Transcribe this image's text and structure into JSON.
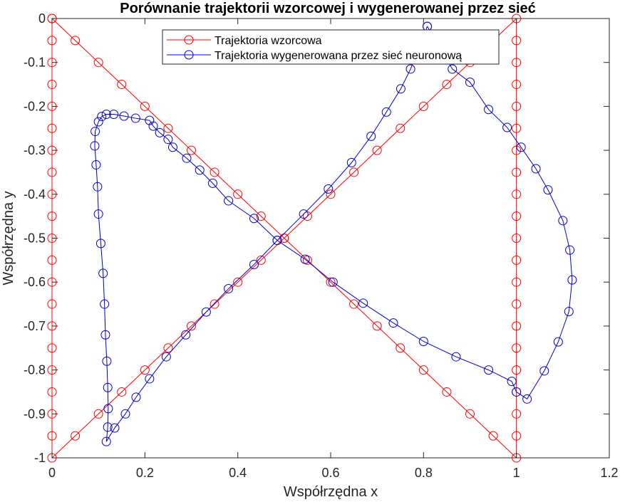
{
  "chart_data": {
    "type": "line",
    "title": "Porównanie trajektorii wzorcowej i wygenerowanej przez sieć",
    "xlabel": "Współrzędna x",
    "ylabel": "Współrzędna y",
    "xlim": [
      0,
      1.2
    ],
    "ylim": [
      -1,
      0
    ],
    "xticks": [
      "0",
      "0.2",
      "0.4",
      "0.6",
      "0.8",
      "1",
      "1.2"
    ],
    "yticks": [
      "-1",
      "-0.9",
      "-0.8",
      "-0.7",
      "-0.6",
      "-0.5",
      "-0.4",
      "-0.3",
      "-0.2",
      "-0.1",
      "0"
    ],
    "grid": false,
    "legend_position": "top-center",
    "series": [
      {
        "name": "Trajektoria wzorcowa",
        "color": "#ff0000",
        "marker": "circle",
        "points": [
          [
            0,
            0
          ],
          [
            0,
            -0.05
          ],
          [
            0,
            -0.1
          ],
          [
            0,
            -0.15
          ],
          [
            0,
            -0.2
          ],
          [
            0,
            -0.25
          ],
          [
            0,
            -0.3
          ],
          [
            0,
            -0.35
          ],
          [
            0,
            -0.4
          ],
          [
            0,
            -0.45
          ],
          [
            0,
            -0.5
          ],
          [
            0,
            -0.55
          ],
          [
            0,
            -0.6
          ],
          [
            0,
            -0.65
          ],
          [
            0,
            -0.7
          ],
          [
            0,
            -0.75
          ],
          [
            0,
            -0.8
          ],
          [
            0,
            -0.85
          ],
          [
            0,
            -0.9
          ],
          [
            0,
            -0.95
          ],
          [
            0,
            -1
          ],
          [
            0.05,
            -0.95
          ],
          [
            0.1,
            -0.9
          ],
          [
            0.15,
            -0.85
          ],
          [
            0.2,
            -0.8
          ],
          [
            0.25,
            -0.75
          ],
          [
            0.3,
            -0.7
          ],
          [
            0.35,
            -0.65
          ],
          [
            0.4,
            -0.6
          ],
          [
            0.45,
            -0.55
          ],
          [
            0.5,
            -0.5
          ],
          [
            0.55,
            -0.45
          ],
          [
            0.6,
            -0.4
          ],
          [
            0.65,
            -0.35
          ],
          [
            0.7,
            -0.3
          ],
          [
            0.75,
            -0.25
          ],
          [
            0.8,
            -0.2
          ],
          [
            0.85,
            -0.15
          ],
          [
            0.9,
            -0.1
          ],
          [
            0.95,
            -0.05
          ],
          [
            1,
            0
          ],
          [
            1,
            -0.05
          ],
          [
            1,
            -0.1
          ],
          [
            1,
            -0.15
          ],
          [
            1,
            -0.2
          ],
          [
            1,
            -0.25
          ],
          [
            1,
            -0.3
          ],
          [
            1,
            -0.35
          ],
          [
            1,
            -0.4
          ],
          [
            1,
            -0.45
          ],
          [
            1,
            -0.5
          ],
          [
            1,
            -0.55
          ],
          [
            1,
            -0.6
          ],
          [
            1,
            -0.65
          ],
          [
            1,
            -0.7
          ],
          [
            1,
            -0.75
          ],
          [
            1,
            -0.8
          ],
          [
            1,
            -0.85
          ],
          [
            1,
            -0.9
          ],
          [
            1,
            -0.95
          ],
          [
            1,
            -1
          ],
          [
            0.95,
            -0.95
          ],
          [
            0.9,
            -0.9
          ],
          [
            0.85,
            -0.85
          ],
          [
            0.8,
            -0.8
          ],
          [
            0.75,
            -0.75
          ],
          [
            0.7,
            -0.7
          ],
          [
            0.65,
            -0.65
          ],
          [
            0.6,
            -0.6
          ],
          [
            0.55,
            -0.55
          ],
          [
            0.5,
            -0.5
          ],
          [
            0.45,
            -0.45
          ],
          [
            0.4,
            -0.4
          ],
          [
            0.35,
            -0.35
          ],
          [
            0.3,
            -0.3
          ],
          [
            0.25,
            -0.25
          ],
          [
            0.2,
            -0.2
          ],
          [
            0.15,
            -0.15
          ],
          [
            0.1,
            -0.1
          ],
          [
            0.05,
            -0.05
          ],
          [
            0,
            0
          ]
        ]
      },
      {
        "name": "Trajektoria wygenerowana przez sieć neuronową",
        "color": "#0000cc",
        "marker": "circle",
        "points": [
          [
            0.808,
            -0.018
          ],
          [
            0.772,
            -0.115
          ],
          [
            0.751,
            -0.16
          ],
          [
            0.72,
            -0.213
          ],
          [
            0.687,
            -0.268
          ],
          [
            0.645,
            -0.328
          ],
          [
            0.595,
            -0.388
          ],
          [
            0.542,
            -0.445
          ],
          [
            0.485,
            -0.505
          ],
          [
            0.435,
            -0.56
          ],
          [
            0.38,
            -0.615
          ],
          [
            0.332,
            -0.668
          ],
          [
            0.288,
            -0.72
          ],
          [
            0.246,
            -0.77
          ],
          [
            0.21,
            -0.82
          ],
          [
            0.181,
            -0.862
          ],
          [
            0.158,
            -0.9
          ],
          [
            0.135,
            -0.932
          ],
          [
            0.117,
            -0.963
          ],
          [
            0.12,
            -0.93
          ],
          [
            0.121,
            -0.888
          ],
          [
            0.12,
            -0.84
          ],
          [
            0.118,
            -0.78
          ],
          [
            0.115,
            -0.72
          ],
          [
            0.113,
            -0.65
          ],
          [
            0.11,
            -0.58
          ],
          [
            0.105,
            -0.512
          ],
          [
            0.1,
            -0.445
          ],
          [
            0.098,
            -0.383
          ],
          [
            0.095,
            -0.333
          ],
          [
            0.092,
            -0.29
          ],
          [
            0.093,
            -0.257
          ],
          [
            0.1,
            -0.235
          ],
          [
            0.107,
            -0.223
          ],
          [
            0.117,
            -0.218
          ],
          [
            0.133,
            -0.218
          ],
          [
            0.155,
            -0.222
          ],
          [
            0.18,
            -0.227
          ],
          [
            0.21,
            -0.232
          ],
          [
            0.218,
            -0.245
          ],
          [
            0.232,
            -0.26
          ],
          [
            0.25,
            -0.275
          ],
          [
            0.26,
            -0.293
          ],
          [
            0.29,
            -0.318
          ],
          [
            0.318,
            -0.345
          ],
          [
            0.346,
            -0.375
          ],
          [
            0.38,
            -0.415
          ],
          [
            0.435,
            -0.455
          ],
          [
            0.485,
            -0.505
          ],
          [
            0.545,
            -0.548
          ],
          [
            0.605,
            -0.6
          ],
          [
            0.67,
            -0.648
          ],
          [
            0.735,
            -0.693
          ],
          [
            0.8,
            -0.735
          ],
          [
            0.87,
            -0.77
          ],
          [
            0.94,
            -0.8
          ],
          [
            0.99,
            -0.826
          ],
          [
            1.0,
            -0.85
          ],
          [
            1.023,
            -0.866
          ],
          [
            1.06,
            -0.802
          ],
          [
            1.09,
            -0.736
          ],
          [
            1.113,
            -0.667
          ],
          [
            1.12,
            -0.595
          ],
          [
            1.115,
            -0.527
          ],
          [
            1.1,
            -0.46
          ],
          [
            1.068,
            -0.39
          ],
          [
            1.042,
            -0.342
          ],
          [
            1.01,
            -0.293
          ],
          [
            0.98,
            -0.248
          ],
          [
            0.94,
            -0.207
          ],
          [
            0.9,
            -0.145
          ],
          [
            0.862,
            -0.115
          ],
          [
            0.808,
            -0.018
          ]
        ]
      }
    ]
  }
}
